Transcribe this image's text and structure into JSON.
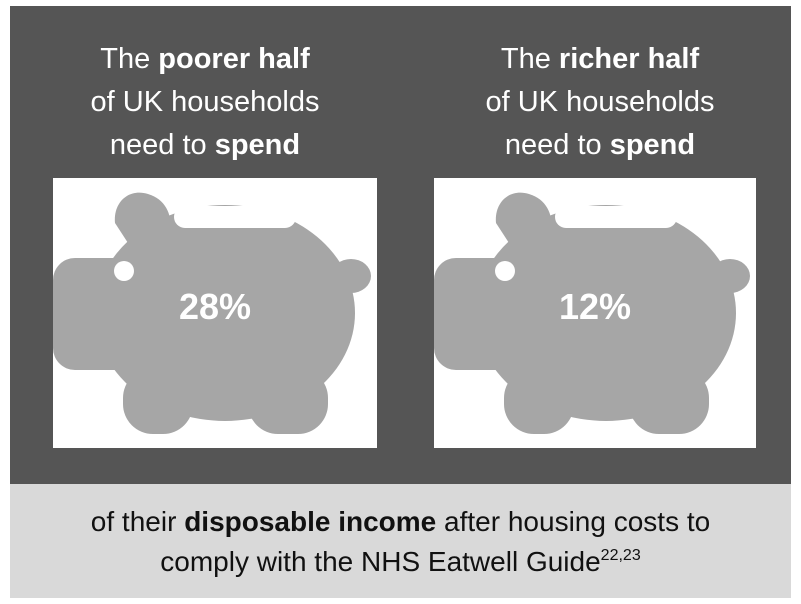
{
  "colors": {
    "panel_dark": "#555555",
    "panel_light": "#d9d9d9",
    "piggy_fill": "#a6a6a6",
    "text_light": "#ffffff"
  },
  "left": {
    "line1_prefix": "The ",
    "line1_bold": "poorer half",
    "line2": "of UK households",
    "line3_prefix": "need to ",
    "line3_bold": "spend",
    "icon": "piggy-bank-icon",
    "percentage": "28%"
  },
  "right": {
    "line1_prefix": "The ",
    "line1_bold": "richer half",
    "line2": "of UK households",
    "line3_prefix": "need to ",
    "line3_bold": "spend",
    "icon": "piggy-bank-icon",
    "percentage": "12%"
  },
  "footer": {
    "prefix": "of their ",
    "bold": "disposable income",
    "suffix": " after housing costs to",
    "line2": "comply with the NHS Eatwell Guide",
    "superscript": "22,23"
  }
}
